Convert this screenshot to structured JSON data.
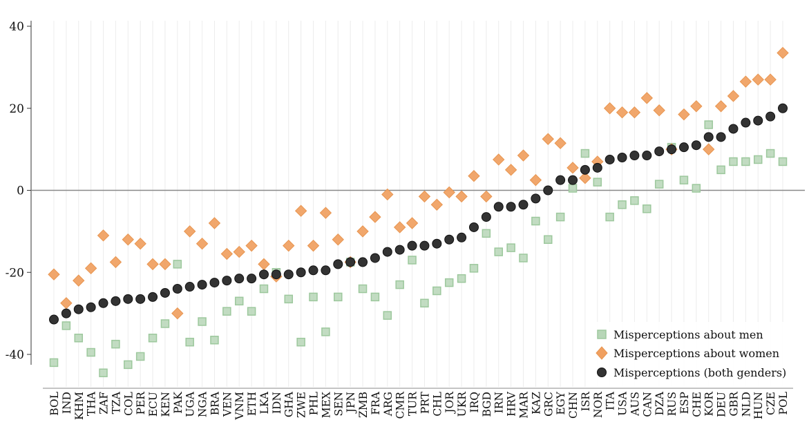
{
  "chart_data": {
    "type": "scatter",
    "title": "",
    "xlabel": "",
    "ylabel": "",
    "ylim": [
      -50,
      40
    ],
    "yticks": [
      40,
      20,
      0,
      -20,
      -40
    ],
    "ytick_labels": [
      "40",
      "20",
      "0",
      "-20",
      "-40"
    ],
    "grid": "vertical",
    "zero_line": true,
    "legend_position": "bottom-right",
    "categories": [
      "BOL",
      "IND",
      "KHM",
      "THA",
      "ZAF",
      "TZA",
      "COL",
      "PER",
      "ECU",
      "KEN",
      "PAK",
      "UGA",
      "NGA",
      "BRA",
      "VEN",
      "VNM",
      "ETH",
      "LKA",
      "IDN",
      "GHA",
      "ZWE",
      "PHL",
      "MEX",
      "SEN",
      "JPN",
      "ZMB",
      "FRA",
      "ARG",
      "CMR",
      "TUR",
      "PRT",
      "CHL",
      "JOR",
      "UKR",
      "IRQ",
      "BGD",
      "IRN",
      "HRV",
      "MAR",
      "KAZ",
      "GRC",
      "EGY",
      "CHN",
      "ISR",
      "NOR",
      "ITA",
      "USA",
      "AUS",
      "CAN",
      "DZA",
      "RUS",
      "ESP",
      "CHE",
      "KOR",
      "DEU",
      "GBR",
      "NLD",
      "HUN",
      "CZE",
      "POL"
    ],
    "series": [
      {
        "name": "Misperceptions about men",
        "marker": "square",
        "color": "#9dc89d",
        "values": [
          -42,
          -33,
          -36,
          -39.5,
          -44.5,
          -37.5,
          -42.5,
          -40.5,
          -36,
          -32.5,
          -18,
          -37,
          -32,
          -36.5,
          -29.5,
          -27,
          -29.5,
          -24,
          -20,
          -26.5,
          -37,
          -26,
          -34.5,
          -26,
          -17.5,
          -24,
          -26,
          -30.5,
          -23,
          -17,
          -27.5,
          -24.5,
          -22.5,
          -21.5,
          -19,
          -10.5,
          -15,
          -14,
          -16.5,
          -7.5,
          -12,
          -6.5,
          0.5,
          9,
          2,
          -6.5,
          -3.5,
          -2.5,
          -4.5,
          1.5,
          10.5,
          2.5,
          0.5,
          16,
          5,
          7,
          7,
          7.5,
          9,
          7
        ]
      },
      {
        "name": "Misperceptions about women",
        "marker": "diamond",
        "color": "#f0a060",
        "values": [
          -20.5,
          -27.5,
          -22,
          -19,
          -11,
          -17.5,
          -12,
          -13,
          -18,
          -18,
          -30,
          -10,
          -13,
          -8,
          -15.5,
          -15,
          -13.5,
          -18,
          -21,
          -13.5,
          -5,
          -13.5,
          -5.5,
          -12,
          -17.5,
          -10,
          -6.5,
          -1,
          -9,
          -8,
          -1.5,
          -3.5,
          -0.5,
          -1.5,
          3.5,
          -1.5,
          7.5,
          5,
          8.5,
          2.5,
          12.5,
          11.5,
          5.5,
          3,
          7,
          20,
          19,
          19,
          22.5,
          19.5,
          10,
          18.5,
          20.5,
          10,
          20.5,
          23,
          26.5,
          27,
          27,
          33.5
        ]
      },
      {
        "name": "Misperceptions (both genders)",
        "marker": "circle",
        "color": "#333333",
        "values": [
          -31.5,
          -30,
          -29,
          -28.5,
          -27.5,
          -27,
          -26.5,
          -26.5,
          -26,
          -25,
          -24,
          -23.5,
          -23,
          -22.5,
          -22,
          -21.5,
          -21.5,
          -20.5,
          -20.5,
          -20.5,
          -20,
          -19.5,
          -19.5,
          -18,
          -17.5,
          -17.5,
          -16.5,
          -15,
          -14.5,
          -13.5,
          -13.5,
          -13,
          -12,
          -11.5,
          -9,
          -6.5,
          -4,
          -4,
          -3.5,
          -2,
          0,
          2.5,
          2.5,
          5,
          5.5,
          7.5,
          8,
          8.5,
          8.5,
          9.5,
          10,
          10.5,
          11,
          13,
          13,
          15,
          16.5,
          17,
          18,
          20
        ]
      }
    ]
  }
}
